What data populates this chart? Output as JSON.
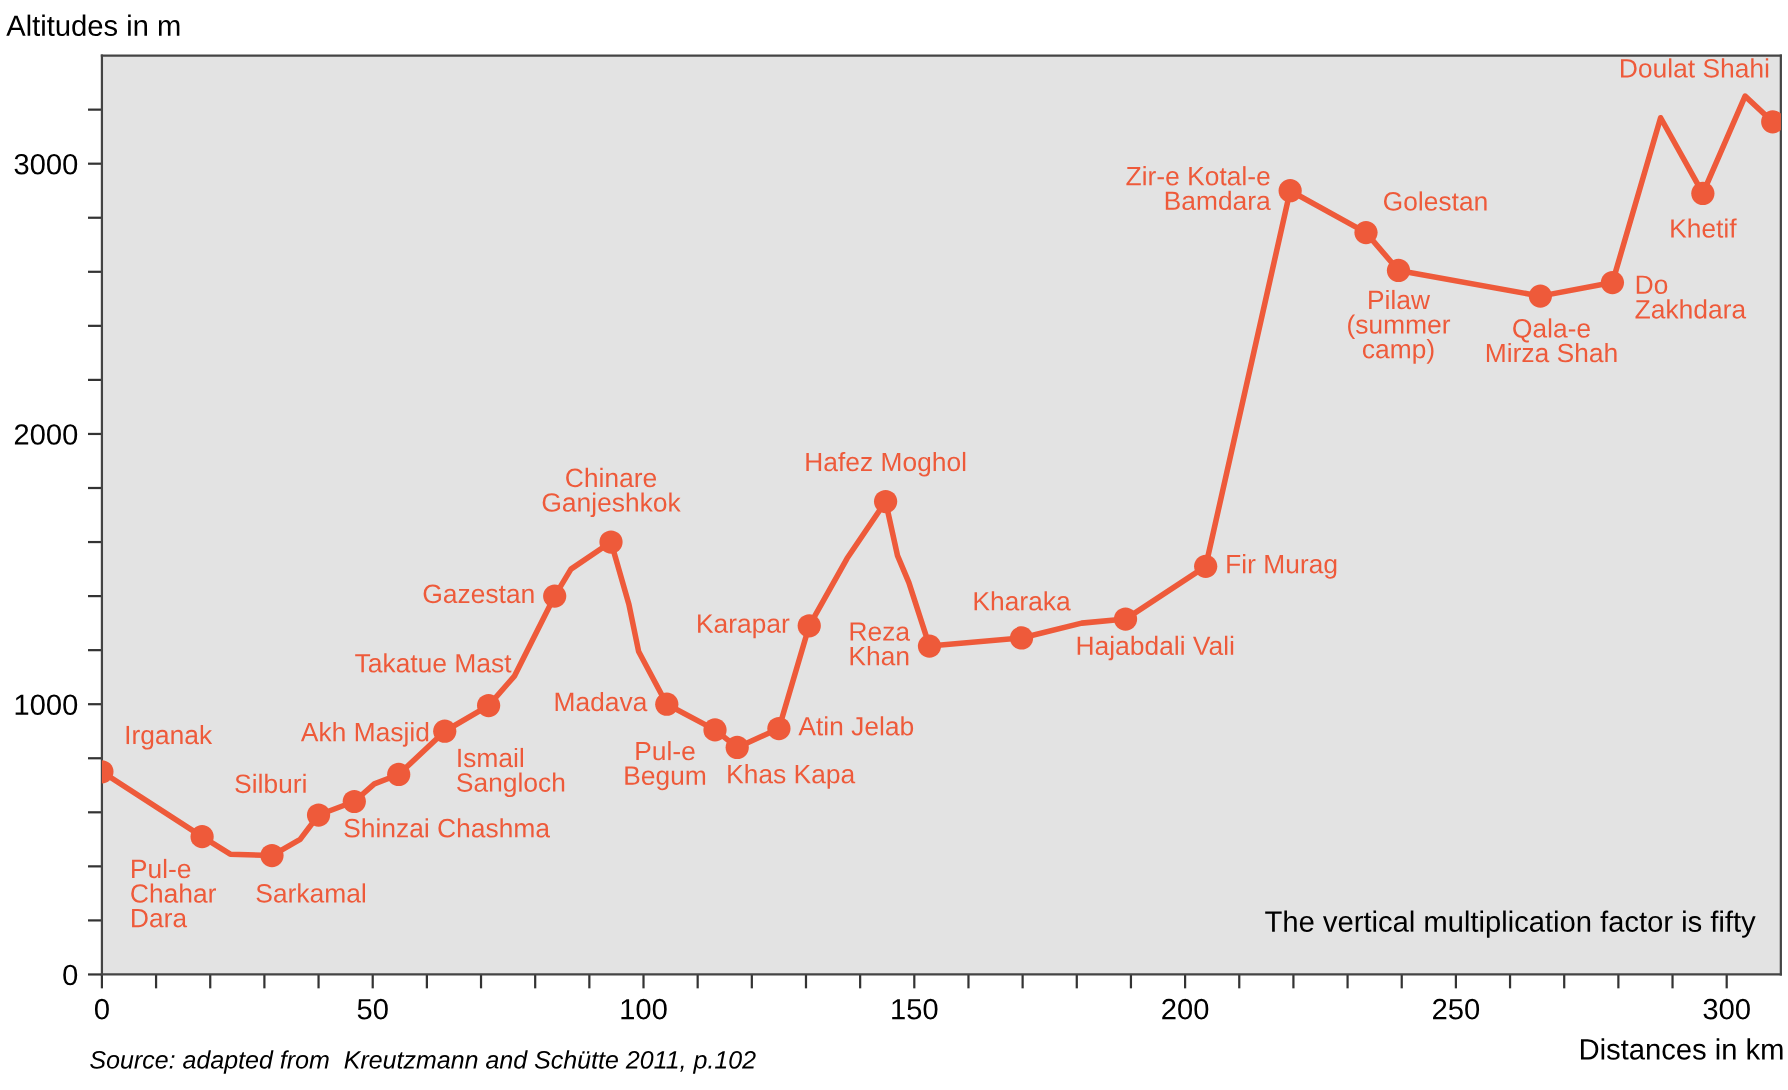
{
  "chart_data": {
    "type": "line",
    "xlabel": "Distances in km",
    "ylabel": "Altitudes in m",
    "xlim": [
      0,
      310
    ],
    "ylim": [
      0,
      3400
    ],
    "xticks": [
      0,
      {
        "value": 10,
        "label": null
      },
      {
        "value": 20,
        "label": null
      },
      {
        "value": 30,
        "label": null
      },
      {
        "value": 40,
        "label": null
      },
      50,
      {
        "value": 60,
        "label": null
      },
      {
        "value": 70,
        "label": null
      },
      {
        "value": 80,
        "label": null
      },
      {
        "value": 90,
        "label": null
      },
      100,
      {
        "value": 110,
        "label": null
      },
      {
        "value": 120,
        "label": null
      },
      {
        "value": 130,
        "label": null
      },
      {
        "value": 140,
        "label": null
      },
      150,
      {
        "value": 160,
        "label": null
      },
      {
        "value": 170,
        "label": null
      },
      {
        "value": 180,
        "label": null
      },
      {
        "value": 190,
        "label": null
      },
      200,
      {
        "value": 210,
        "label": null
      },
      {
        "value": 220,
        "label": null
      },
      {
        "value": 230,
        "label": null
      },
      {
        "value": 240,
        "label": null
      },
      250,
      {
        "value": 260,
        "label": null
      },
      {
        "value": 270,
        "label": null
      },
      {
        "value": 280,
        "label": null
      },
      {
        "value": 290,
        "label": null
      },
      300
    ],
    "yticks": [
      0,
      {
        "value": 200,
        "label": null
      },
      {
        "value": 400,
        "label": null
      },
      {
        "value": 600,
        "label": null
      },
      {
        "value": 800,
        "label": null
      },
      1000,
      {
        "value": 1200,
        "label": null
      },
      {
        "value": 1400,
        "label": null
      },
      {
        "value": 1600,
        "label": null
      },
      {
        "value": 1800,
        "label": null
      },
      2000,
      {
        "value": 2200,
        "label": null
      },
      {
        "value": 2400,
        "label": null
      },
      {
        "value": 2600,
        "label": null
      },
      {
        "value": 2800,
        "label": null
      },
      3000,
      {
        "value": 3200,
        "label": null
      }
    ],
    "grid": false,
    "series": [
      {
        "color": "#ee5a3a",
        "marker": "none",
        "line_style": "solid",
        "x": [
          0,
          18.5,
          23.7,
          31.4,
          36.6,
          40,
          46.6,
          50.3,
          54.8,
          63.3,
          71.4,
          76.2,
          83.6,
          86.6,
          94,
          97.3,
          99.1,
          104.3,
          113.2,
          117.3,
          125,
          130.6,
          137.6,
          144.7,
          146.9,
          149,
          152.8,
          169.8,
          180.9,
          189,
          203.8,
          219.4,
          233.4,
          239.4,
          265.6,
          278.9,
          287.8,
          295.6,
          303.4,
          308.5
        ],
        "values": [
          750,
          510,
          445,
          440,
          500,
          590,
          640,
          705,
          740,
          900,
          995,
          1105,
          1400,
          1500,
          1600,
          1370,
          1195,
          1000,
          905,
          840,
          910,
          1290,
          1540,
          1750,
          1550,
          1450,
          1215,
          1245,
          1300,
          1315,
          1510,
          2900,
          2745,
          2605,
          2510,
          2560,
          3170,
          2890,
          3250,
          3155
        ]
      },
      {
        "type": "scatter",
        "color": "#ee5a3a",
        "marker": "circle",
        "x": [
          0,
          18.5,
          31.4,
          40,
          46.6,
          54.8,
          63.3,
          71.4,
          83.6,
          94,
          104.3,
          113.2,
          117.3,
          125,
          130.6,
          144.7,
          152.8,
          169.8,
          189,
          203.8,
          219.4,
          233.4,
          239.4,
          265.6,
          278.9,
          295.6,
          308.5
        ],
        "values": [
          750,
          510,
          440,
          590,
          640,
          740,
          900,
          995,
          1400,
          1600,
          1000,
          905,
          840,
          910,
          1290,
          1750,
          1215,
          1245,
          1315,
          1510,
          2900,
          2745,
          2605,
          2510,
          2560,
          2890,
          3155
        ]
      }
    ],
    "annotations": [
      {
        "text": "Irganak",
        "x": 0,
        "y": 750
      },
      {
        "text": "Pul-e\nChahar\nDara",
        "x": 18.5,
        "y": 510
      },
      {
        "text": "Sarkamal",
        "x": 31.4,
        "y": 440
      },
      {
        "text": "Silburi",
        "x": 40,
        "y": 590
      },
      {
        "text": "Shinzai Chashma",
        "x": 46.6,
        "y": 640
      },
      {
        "text": "Akh Masjid",
        "x": 54.8,
        "y": 740
      },
      {
        "text": "Ismail\nSangloch",
        "x": 63.3,
        "y": 900
      },
      {
        "text": "Takatue Mast",
        "x": 71.4,
        "y": 995
      },
      {
        "text": "Gazestan",
        "x": 83.6,
        "y": 1400
      },
      {
        "text": "Chinare\nGanjeshkok",
        "x": 94,
        "y": 1600
      },
      {
        "text": "Madava",
        "x": 104.3,
        "y": 1000
      },
      {
        "text": "Pul-e\nBegum",
        "x": 113.2,
        "y": 905
      },
      {
        "text": "Khas Kapa",
        "x": 117.3,
        "y": 840
      },
      {
        "text": "Atin Jelab",
        "x": 125,
        "y": 910
      },
      {
        "text": "Karapar",
        "x": 130.6,
        "y": 1290
      },
      {
        "text": "Hafez Moghol",
        "x": 144.7,
        "y": 1750
      },
      {
        "text": "Reza\nKhan",
        "x": 152.8,
        "y": 1215
      },
      {
        "text": "Kharaka",
        "x": 169.8,
        "y": 1245
      },
      {
        "text": "Hajabdali Vali",
        "x": 189,
        "y": 1315
      },
      {
        "text": "Fir Murag",
        "x": 203.8,
        "y": 1510
      },
      {
        "text": "Zir-e Kotal-e\nBamdara",
        "x": 219.4,
        "y": 2900
      },
      {
        "text": "Golestan",
        "x": 233.4,
        "y": 2745
      },
      {
        "text": "Pilaw\n(summer\ncamp)",
        "x": 239.4,
        "y": 2605
      },
      {
        "text": "Qala-e\nMirza Shah",
        "x": 265.6,
        "y": 2510
      },
      {
        "text": "Do\nZakhdara",
        "x": 278.9,
        "y": 2560
      },
      {
        "text": "Khetif",
        "x": 295.6,
        "y": 2890
      },
      {
        "text": "Doulat Shahi",
        "x": 308.5,
        "y": 3155
      },
      "The vertical multiplication factor is fifty",
      "Source: adapted from  Kreutzmann and Schütte 2011, p.102"
    ]
  }
}
